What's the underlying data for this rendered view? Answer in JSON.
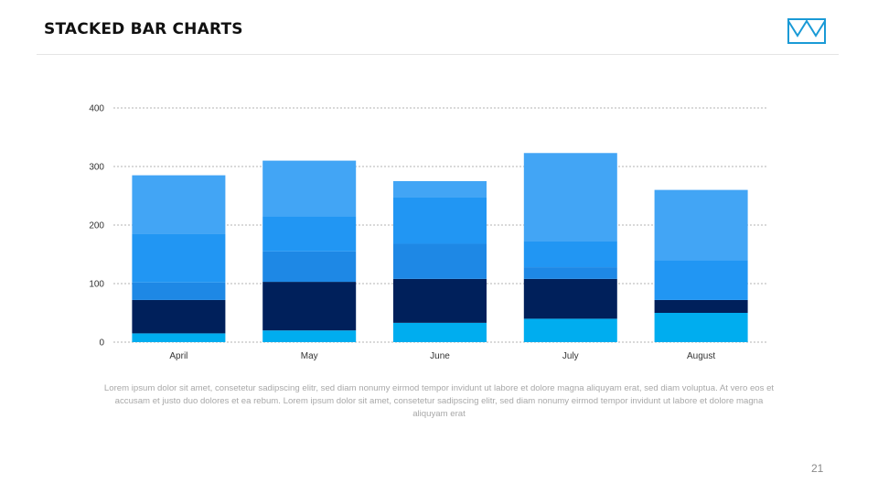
{
  "slide": {
    "title": "STACKED BAR CHARTS",
    "logo_icon": "crown-outline-icon",
    "description": "Lorem ipsum dolor sit amet, consetetur sadipscing elitr, sed diam nonumy eirmod tempor invidunt ut labore et dolore magna aliquyam erat, sed diam voluptua. At vero eos et accusam et justo duo dolores et ea rebum. Lorem ipsum dolor sit amet, consetetur sadipscing elitr, sed diam nonumy eirmod tempor invidunt ut labore et dolore magna aliquyam erat",
    "page_number": "21"
  },
  "colors": {
    "accent": "#1a9ad6",
    "grid": "#9a9a9a",
    "segments": [
      "#00adef",
      "#00205b",
      "#1e88e5",
      "#2196f3",
      "#42a5f5"
    ]
  },
  "chart_data": {
    "type": "bar",
    "stacked": true,
    "title": "",
    "xlabel": "",
    "ylabel": "",
    "categories": [
      "April",
      "May",
      "June",
      "July",
      "August"
    ],
    "ylim": [
      0,
      400
    ],
    "yticks": [
      0,
      100,
      200,
      300,
      400
    ],
    "grid": true,
    "gridline_style": "dashed",
    "legend": "none",
    "series": [
      {
        "values": [
          15,
          20,
          33,
          40,
          50
        ]
      },
      {
        "values": [
          57,
          83,
          75,
          68,
          22
        ]
      },
      {
        "values": [
          30,
          52,
          60,
          20,
          0
        ]
      },
      {
        "values": [
          83,
          60,
          80,
          45,
          68
        ]
      },
      {
        "values": [
          100,
          95,
          27,
          150,
          120
        ]
      }
    ]
  }
}
